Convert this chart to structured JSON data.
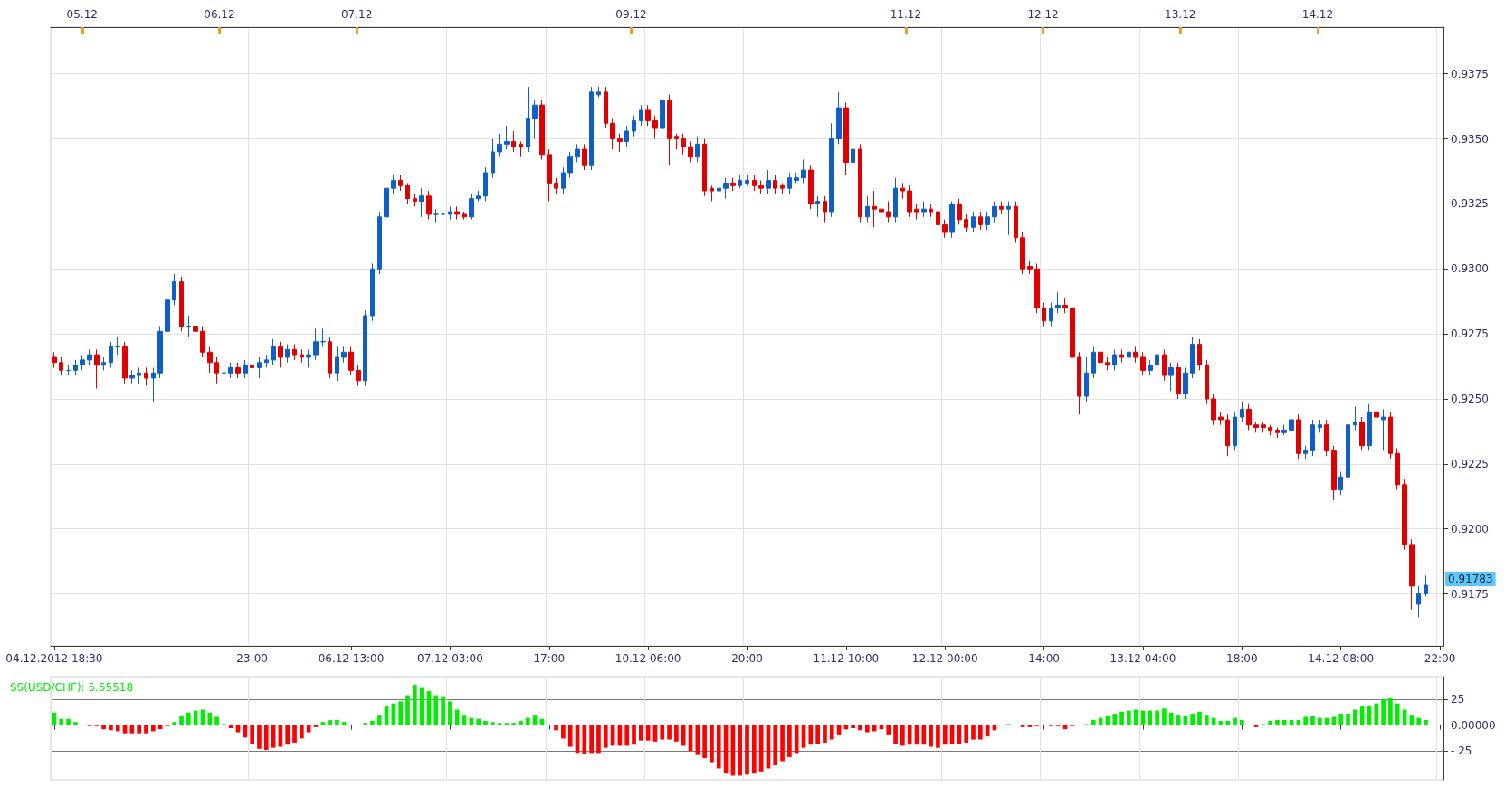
{
  "chart_data": [
    {
      "type": "candlestick",
      "categories": [
        "04.12.2012 18:30",
        null,
        null,
        null,
        null,
        null,
        null,
        null,
        null,
        null,
        null,
        null,
        null,
        null,
        null,
        null,
        null,
        null,
        null,
        null,
        null,
        null,
        null,
        null,
        null,
        null,
        null,
        null,
        "23:00",
        null,
        null,
        null,
        null,
        null,
        null,
        null,
        null,
        null,
        null,
        null,
        null,
        null,
        "06.12 13:00",
        null,
        null,
        null,
        null,
        null,
        null,
        null,
        null,
        null,
        null,
        null,
        null,
        null,
        "07.12 03:00",
        null,
        null,
        null,
        null,
        null,
        null,
        null,
        null,
        null,
        null,
        null,
        null,
        null,
        "17:00",
        null,
        null,
        null,
        null,
        null,
        null,
        null,
        null,
        null,
        null,
        null,
        null,
        null,
        "10.12 06:00",
        null,
        null,
        null,
        null,
        null,
        null,
        null,
        null,
        null,
        null,
        null,
        null,
        null,
        "20:00",
        null,
        null,
        null,
        null,
        null,
        null,
        null,
        null,
        null,
        null,
        null,
        null,
        null,
        "11.12 10:00",
        null,
        null,
        null,
        null,
        null,
        null,
        null,
        null,
        null,
        null,
        null,
        null,
        null,
        "12.12 00:00",
        null,
        null,
        null,
        null,
        null,
        null,
        null,
        null,
        null,
        null,
        null,
        null,
        null,
        "14:00",
        null,
        null,
        null,
        null,
        null,
        null,
        null,
        null,
        null,
        null,
        null,
        null,
        null,
        "13.12 04:00",
        null,
        null,
        null,
        null,
        null,
        null,
        null,
        null,
        null,
        null,
        null,
        null,
        null,
        "18:00",
        null,
        null,
        null,
        null,
        null,
        null,
        null,
        null,
        null,
        null,
        null,
        null,
        null,
        "14.12 08:00",
        null,
        null,
        null,
        null,
        null,
        null,
        null,
        null,
        null,
        null,
        null,
        null,
        null,
        "22:00"
      ],
      "ohlc": [
        [
          0.9266,
          0.9268,
          0.9262,
          0.9264
        ],
        [
          0.9264,
          0.9266,
          0.9259,
          0.9261
        ],
        [
          0.9261,
          0.9263,
          0.9259,
          0.9261
        ],
        [
          0.9261,
          0.9265,
          0.9259,
          0.9263
        ],
        [
          0.9263,
          0.9267,
          0.9261,
          0.9265
        ],
        [
          0.9265,
          0.9269,
          0.9263,
          0.9267
        ],
        [
          0.9267,
          0.9269,
          0.9254,
          0.9263
        ],
        [
          0.9263,
          0.9266,
          0.9261,
          0.9264
        ],
        [
          0.9264,
          0.9272,
          0.9262,
          0.927
        ],
        [
          0.927,
          0.9274,
          0.9267,
          0.927
        ],
        [
          0.927,
          0.9272,
          0.9256,
          0.9258
        ],
        [
          0.9258,
          0.9261,
          0.9256,
          0.9259
        ],
        [
          0.9259,
          0.9262,
          0.9256,
          0.926
        ],
        [
          0.926,
          0.9262,
          0.9255,
          0.9258
        ],
        [
          0.9258,
          0.9262,
          0.9249,
          0.926
        ],
        [
          0.926,
          0.9278,
          0.9258,
          0.9276
        ],
        [
          0.9276,
          0.929,
          0.9274,
          0.9288
        ],
        [
          0.9288,
          0.9298,
          0.9286,
          0.9295
        ],
        [
          0.9295,
          0.9297,
          0.9276,
          0.9278
        ],
        [
          0.9278,
          0.9282,
          0.9274,
          0.9278
        ],
        [
          0.9278,
          0.928,
          0.9274,
          0.9276
        ],
        [
          0.9276,
          0.9278,
          0.9266,
          0.9268
        ],
        [
          0.9268,
          0.927,
          0.926,
          0.9264
        ],
        [
          0.9264,
          0.9266,
          0.9256,
          0.926
        ],
        [
          0.926,
          0.9262,
          0.9258,
          0.926
        ],
        [
          0.926,
          0.9264,
          0.9258,
          0.9262
        ],
        [
          0.9262,
          0.9264,
          0.9258,
          0.926
        ],
        [
          0.926,
          0.9265,
          0.9258,
          0.9263
        ],
        [
          0.9263,
          0.9265,
          0.9259,
          0.9262
        ],
        [
          0.9262,
          0.9266,
          0.9258,
          0.9264
        ],
        [
          0.9264,
          0.9267,
          0.9262,
          0.9265
        ],
        [
          0.9265,
          0.9273,
          0.9263,
          0.927
        ],
        [
          0.927,
          0.9272,
          0.9262,
          0.9266
        ],
        [
          0.9266,
          0.9271,
          0.9264,
          0.9269
        ],
        [
          0.9269,
          0.9271,
          0.9265,
          0.9267
        ],
        [
          0.9267,
          0.9269,
          0.9264,
          0.9266
        ],
        [
          0.9266,
          0.9269,
          0.9262,
          0.9267
        ],
        [
          0.9267,
          0.9277,
          0.9265,
          0.9272
        ],
        [
          0.9272,
          0.9277,
          0.927,
          0.9272
        ],
        [
          0.9272,
          0.9274,
          0.9258,
          0.926
        ],
        [
          0.926,
          0.927,
          0.9257,
          0.9266
        ],
        [
          0.9266,
          0.927,
          0.9264,
          0.9268
        ],
        [
          0.9268,
          0.927,
          0.9259,
          0.9261
        ],
        [
          0.9261,
          0.9263,
          0.9255,
          0.9257
        ],
        [
          0.9257,
          0.9284,
          0.9255,
          0.9282
        ],
        [
          0.9282,
          0.9302,
          0.928,
          0.93
        ],
        [
          0.93,
          0.9322,
          0.9298,
          0.932
        ],
        [
          0.932,
          0.9333,
          0.9318,
          0.9331
        ],
        [
          0.9331,
          0.9336,
          0.9329,
          0.9334
        ],
        [
          0.9334,
          0.9336,
          0.933,
          0.9332
        ],
        [
          0.9332,
          0.9333,
          0.9325,
          0.9327
        ],
        [
          0.9327,
          0.9329,
          0.9324,
          0.9326
        ],
        [
          0.9326,
          0.9331,
          0.932,
          0.9328
        ],
        [
          0.9328,
          0.933,
          0.9319,
          0.9321
        ],
        [
          0.9321,
          0.9323,
          0.9318,
          0.9321
        ],
        [
          0.9321,
          0.9323,
          0.9319,
          0.9321
        ],
        [
          0.9321,
          0.9324,
          0.9319,
          0.9322
        ],
        [
          0.9322,
          0.9324,
          0.9319,
          0.9321
        ],
        [
          0.9321,
          0.9322,
          0.9319,
          0.932
        ],
        [
          0.932,
          0.9329,
          0.9319,
          0.9327
        ],
        [
          0.9327,
          0.933,
          0.9326,
          0.9328
        ],
        [
          0.9328,
          0.9339,
          0.9326,
          0.9337
        ],
        [
          0.9337,
          0.935,
          0.9335,
          0.9345
        ],
        [
          0.9345,
          0.9352,
          0.9343,
          0.9348
        ],
        [
          0.9348,
          0.9355,
          0.9346,
          0.9349
        ],
        [
          0.9349,
          0.9353,
          0.9345,
          0.9347
        ],
        [
          0.9348,
          0.9349,
          0.9343,
          0.9347
        ],
        [
          0.9347,
          0.937,
          0.9345,
          0.9358
        ],
        [
          0.9358,
          0.9365,
          0.935,
          0.9363
        ],
        [
          0.9363,
          0.9365,
          0.9342,
          0.9344
        ],
        [
          0.9344,
          0.9346,
          0.9326,
          0.9333
        ],
        [
          0.9333,
          0.9335,
          0.9329,
          0.9331
        ],
        [
          0.9331,
          0.9339,
          0.9329,
          0.9337
        ],
        [
          0.9337,
          0.9345,
          0.9335,
          0.9343
        ],
        [
          0.9343,
          0.9348,
          0.9341,
          0.9346
        ],
        [
          0.9346,
          0.9348,
          0.9338,
          0.934
        ],
        [
          0.934,
          0.937,
          0.9338,
          0.9368
        ],
        [
          0.9367,
          0.937,
          0.9366,
          0.9368
        ],
        [
          0.9368,
          0.937,
          0.9354,
          0.9356
        ],
        [
          0.9356,
          0.9358,
          0.9346,
          0.935
        ],
        [
          0.935,
          0.9352,
          0.9345,
          0.9349
        ],
        [
          0.9349,
          0.9355,
          0.9347,
          0.9353
        ],
        [
          0.9353,
          0.9359,
          0.9351,
          0.9357
        ],
        [
          0.9357,
          0.9363,
          0.9355,
          0.9361
        ],
        [
          0.9361,
          0.9363,
          0.9355,
          0.9357
        ],
        [
          0.9357,
          0.9359,
          0.935,
          0.9354
        ],
        [
          0.9354,
          0.9368,
          0.9352,
          0.9365
        ],
        [
          0.9365,
          0.9367,
          0.934,
          0.935
        ],
        [
          0.9351,
          0.9352,
          0.9346,
          0.935
        ],
        [
          0.935,
          0.9352,
          0.9344,
          0.9347
        ],
        [
          0.9347,
          0.9349,
          0.9341,
          0.9343
        ],
        [
          0.9343,
          0.9351,
          0.9341,
          0.9348
        ],
        [
          0.9348,
          0.935,
          0.9328,
          0.933
        ],
        [
          0.9331,
          0.9332,
          0.9326,
          0.933
        ],
        [
          0.933,
          0.9335,
          0.9328,
          0.9331
        ],
        [
          0.9331,
          0.9335,
          0.9327,
          0.9333
        ],
        [
          0.9333,
          0.9335,
          0.933,
          0.9332
        ],
        [
          0.9332,
          0.9336,
          0.9331,
          0.9334
        ],
        [
          0.9333,
          0.9336,
          0.9332,
          0.9334
        ],
        [
          0.9334,
          0.9336,
          0.933,
          0.9332
        ],
        [
          0.9332,
          0.9334,
          0.9329,
          0.9331
        ],
        [
          0.9331,
          0.9338,
          0.9329,
          0.9334
        ],
        [
          0.9334,
          0.9336,
          0.9329,
          0.9331
        ],
        [
          0.9332,
          0.9333,
          0.9329,
          0.9331
        ],
        [
          0.9331,
          0.9337,
          0.9329,
          0.9335
        ],
        [
          0.9334,
          0.9337,
          0.9333,
          0.9335
        ],
        [
          0.9335,
          0.9342,
          0.9333,
          0.9338
        ],
        [
          0.9338,
          0.934,
          0.9323,
          0.9325
        ],
        [
          0.9325,
          0.9328,
          0.932,
          0.9326
        ],
        [
          0.9326,
          0.9328,
          0.9318,
          0.9322
        ],
        [
          0.9322,
          0.9356,
          0.932,
          0.935
        ],
        [
          0.935,
          0.9368,
          0.9348,
          0.9362
        ],
        [
          0.9362,
          0.9364,
          0.9336,
          0.9341
        ],
        [
          0.9341,
          0.935,
          0.9338,
          0.9346
        ],
        [
          0.9346,
          0.9348,
          0.9318,
          0.932
        ],
        [
          0.932,
          0.9328,
          0.9318,
          0.9324
        ],
        [
          0.9324,
          0.933,
          0.9316,
          0.9323
        ],
        [
          0.9323,
          0.9328,
          0.932,
          0.9322
        ],
        [
          0.9322,
          0.9326,
          0.9318,
          0.932
        ],
        [
          0.932,
          0.9335,
          0.9318,
          0.9331
        ],
        [
          0.9331,
          0.9333,
          0.9327,
          0.933
        ],
        [
          0.933,
          0.9332,
          0.932,
          0.9322
        ],
        [
          0.9323,
          0.9325,
          0.9319,
          0.9322
        ],
        [
          0.9322,
          0.9326,
          0.932,
          0.9323
        ],
        [
          0.9323,
          0.9325,
          0.932,
          0.9322
        ],
        [
          0.9322,
          0.9324,
          0.9315,
          0.9317
        ],
        [
          0.9317,
          0.9319,
          0.9312,
          0.9314
        ],
        [
          0.9314,
          0.9326,
          0.9312,
          0.9325
        ],
        [
          0.9325,
          0.9327,
          0.9317,
          0.9319
        ],
        [
          0.9319,
          0.9321,
          0.9314,
          0.9316
        ],
        [
          0.9316,
          0.9322,
          0.9314,
          0.932
        ],
        [
          0.932,
          0.9322,
          0.9315,
          0.9317
        ],
        [
          0.9317,
          0.9322,
          0.9315,
          0.932
        ],
        [
          0.932,
          0.9326,
          0.9318,
          0.9324
        ],
        [
          0.9324,
          0.9326,
          0.9321,
          0.9323
        ],
        [
          0.9323,
          0.9326,
          0.9313,
          0.9324
        ],
        [
          0.9324,
          0.9326,
          0.931,
          0.9312
        ],
        [
          0.9312,
          0.9314,
          0.9298,
          0.93
        ],
        [
          0.9301,
          0.9303,
          0.9298,
          0.93
        ],
        [
          0.93,
          0.9302,
          0.9283,
          0.9285
        ],
        [
          0.9285,
          0.9287,
          0.9278,
          0.928
        ],
        [
          0.928,
          0.9287,
          0.9278,
          0.9285
        ],
        [
          0.9285,
          0.9291,
          0.9283,
          0.9286
        ],
        [
          0.9286,
          0.9289,
          0.9283,
          0.9285
        ],
        [
          0.9285,
          0.9287,
          0.9264,
          0.9266
        ],
        [
          0.9266,
          0.9268,
          0.9244,
          0.9251
        ],
        [
          0.9251,
          0.9266,
          0.9249,
          0.926
        ],
        [
          0.926,
          0.927,
          0.9258,
          0.9268
        ],
        [
          0.9268,
          0.927,
          0.9262,
          0.9264
        ],
        [
          0.9264,
          0.9266,
          0.9261,
          0.9263
        ],
        [
          0.9263,
          0.9269,
          0.9261,
          0.9267
        ],
        [
          0.9267,
          0.9269,
          0.9264,
          0.9266
        ],
        [
          0.9266,
          0.927,
          0.9264,
          0.9268
        ],
        [
          0.9268,
          0.927,
          0.9264,
          0.9266
        ],
        [
          0.9266,
          0.9268,
          0.9259,
          0.9261
        ],
        [
          0.9261,
          0.9265,
          0.9259,
          0.9263
        ],
        [
          0.9263,
          0.9269,
          0.9261,
          0.9267
        ],
        [
          0.9267,
          0.9269,
          0.9257,
          0.9259
        ],
        [
          0.9259,
          0.9264,
          0.9253,
          0.9262
        ],
        [
          0.9262,
          0.9264,
          0.925,
          0.9252
        ],
        [
          0.9252,
          0.9262,
          0.925,
          0.926
        ],
        [
          0.926,
          0.9274,
          0.9258,
          0.9271
        ],
        [
          0.9271,
          0.9273,
          0.9261,
          0.9263
        ],
        [
          0.9263,
          0.9265,
          0.9248,
          0.925
        ],
        [
          0.925,
          0.9252,
          0.924,
          0.9242
        ],
        [
          0.9243,
          0.9245,
          0.924,
          0.9242
        ],
        [
          0.9242,
          0.9244,
          0.9228,
          0.9232
        ],
        [
          0.9232,
          0.9245,
          0.923,
          0.9243
        ],
        [
          0.9243,
          0.9249,
          0.9241,
          0.9246
        ],
        [
          0.9246,
          0.9248,
          0.9238,
          0.924
        ],
        [
          0.924,
          0.9241,
          0.9237,
          0.9239
        ],
        [
          0.924,
          0.9241,
          0.9237,
          0.9239
        ],
        [
          0.9239,
          0.924,
          0.9236,
          0.9238
        ],
        [
          0.9238,
          0.9239,
          0.9235,
          0.9237
        ],
        [
          0.9237,
          0.924,
          0.9236,
          0.9238
        ],
        [
          0.9238,
          0.9244,
          0.9236,
          0.9242
        ],
        [
          0.9242,
          0.9244,
          0.9227,
          0.9229
        ],
        [
          0.9229,
          0.9232,
          0.9227,
          0.923
        ],
        [
          0.923,
          0.9242,
          0.9228,
          0.924
        ],
        [
          0.9239,
          0.9242,
          0.9237,
          0.924
        ],
        [
          0.924,
          0.9242,
          0.9228,
          0.923
        ],
        [
          0.923,
          0.9232,
          0.9211,
          0.9215
        ],
        [
          0.9215,
          0.9222,
          0.9213,
          0.922
        ],
        [
          0.922,
          0.9242,
          0.9218,
          0.924
        ],
        [
          0.924,
          0.9247,
          0.9238,
          0.9241
        ],
        [
          0.9241,
          0.9243,
          0.923,
          0.9232
        ],
        [
          0.9232,
          0.9248,
          0.923,
          0.9245
        ],
        [
          0.9245,
          0.9247,
          0.9228,
          0.9243
        ],
        [
          0.9242,
          0.9246,
          0.923,
          0.9243
        ],
        [
          0.9243,
          0.9245,
          0.9227,
          0.9229
        ],
        [
          0.9229,
          0.9231,
          0.9215,
          0.9217
        ],
        [
          0.9217,
          0.9219,
          0.9192,
          0.9194
        ],
        [
          0.9194,
          0.9196,
          0.9169,
          0.9178
        ],
        [
          0.9171,
          0.9178,
          0.9166,
          0.9175
        ],
        [
          0.9175,
          0.9182,
          0.9174,
          0.91783
        ],
        null,
        null
      ],
      "colors": [
        "#e00000",
        "#e00000",
        "#0f5fc8",
        "#0f5fc8",
        "#0f5fc8",
        "#0f5fc8",
        "#e00000",
        "#0f5fc8",
        "#0f5fc8",
        "#0f5fc8",
        "#e00000",
        "#0f5fc8",
        "#0f5fc8",
        "#e00000",
        "#0f5fc8",
        "#0f5fc8",
        "#0f5fc8",
        "#0f5fc8",
        "#e00000",
        "#0f5fc8",
        "#e00000",
        "#e00000",
        "#e00000",
        "#e00000",
        "#0f5fc8",
        "#0f5fc8",
        "#e00000",
        "#0f5fc8",
        "#e00000",
        "#0f5fc8",
        "#0f5fc8",
        "#0f5fc8",
        "#e00000",
        "#0f5fc8",
        "#e00000",
        "#e00000",
        "#0f5fc8",
        "#0f5fc8",
        "#0f5fc8",
        "#e00000",
        "#0f5fc8",
        "#0f5fc8",
        "#e00000",
        "#e00000",
        "#0f5fc8",
        "#0f5fc8",
        "#0f5fc8",
        "#0f5fc8",
        "#0f5fc8",
        "#e00000",
        "#e00000",
        "#e00000",
        "#0f5fc8",
        "#e00000",
        "#0f5fc8",
        "#0f5fc8",
        "#0f5fc8",
        "#e00000",
        "#e00000",
        "#0f5fc8",
        "#0f5fc8",
        "#0f5fc8",
        "#0f5fc8",
        "#0f5fc8",
        "#0f5fc8",
        "#e00000",
        "#e00000",
        "#0f5fc8",
        "#0f5fc8",
        "#e00000",
        "#e00000",
        "#e00000",
        "#0f5fc8",
        "#0f5fc8",
        "#0f5fc8",
        "#e00000",
        "#0f5fc8",
        "#0f5fc8",
        "#e00000",
        "#e00000",
        "#e00000",
        "#0f5fc8",
        "#0f5fc8",
        "#0f5fc8",
        "#e00000",
        "#e00000",
        "#0f5fc8",
        "#e00000",
        "#e00000",
        "#e00000",
        "#e00000",
        "#0f5fc8",
        "#e00000",
        "#e00000",
        "#0f5fc8",
        "#0f5fc8",
        "#e00000",
        "#0f5fc8",
        "#0f5fc8",
        "#e00000",
        "#e00000",
        "#0f5fc8",
        "#e00000",
        "#e00000",
        "#0f5fc8",
        "#0f5fc8",
        "#0f5fc8",
        "#e00000",
        "#0f5fc8",
        "#e00000",
        "#0f5fc8",
        "#0f5fc8",
        "#e00000",
        "#0f5fc8",
        "#e00000",
        "#0f5fc8",
        "#e00000",
        "#e00000",
        "#e00000",
        "#0f5fc8",
        "#e00000",
        "#e00000",
        "#e00000",
        "#0f5fc8",
        "#e00000",
        "#e00000",
        "#e00000",
        "#0f5fc8",
        "#e00000",
        "#e00000",
        "#0f5fc8",
        "#e00000",
        "#0f5fc8",
        "#0f5fc8",
        "#e00000",
        "#0f5fc8",
        "#e00000",
        "#e00000",
        "#e00000",
        "#e00000",
        "#e00000",
        "#0f5fc8",
        "#0f5fc8",
        "#e00000",
        "#e00000",
        "#e00000",
        "#0f5fc8",
        "#0f5fc8",
        "#e00000",
        "#e00000",
        "#0f5fc8",
        "#e00000",
        "#0f5fc8",
        "#e00000",
        "#e00000",
        "#0f5fc8",
        "#0f5fc8",
        "#e00000",
        "#0f5fc8",
        "#e00000",
        "#0f5fc8",
        "#0f5fc8",
        "#e00000",
        "#e00000",
        "#e00000",
        "#e00000",
        "#e00000",
        "#0f5fc8",
        "#0f5fc8",
        "#e00000",
        "#e00000",
        "#e00000",
        "#e00000",
        "#e00000",
        "#0f5fc8",
        "#0f5fc8",
        "#e00000",
        "#0f5fc8",
        "#0f5fc8",
        "#0f5fc8",
        "#e00000",
        "#e00000",
        "#0f5fc8",
        "#0f5fc8",
        "#0f5fc8",
        "#e00000",
        "#0f5fc8",
        "#e00000",
        "#0f5fc8",
        "#e00000",
        "#e00000",
        "#e00000",
        "#e00000",
        "#0f5fc8",
        "#0f5fc8",
        null,
        null
      ],
      "ylim": [
        0.9155,
        0.9393
      ],
      "yticks": [
        0.9175,
        {
          "value": 0.92,
          "label": "0.9200"
        },
        0.9225,
        {
          "value": 0.925,
          "label": "0.9250"
        },
        0.9275,
        {
          "value": 0.93,
          "label": "0.9300"
        },
        0.9325,
        {
          "value": 0.935,
          "label": "0.9350"
        },
        0.9375
      ],
      "x2lim": [
        "--12-04T18:30",
        "--12-14T22:00"
      ],
      "x2ticks": [
        {
          "value": "--12-05",
          "label": "05.12"
        },
        {
          "value": "--12-06",
          "label": "06.12"
        },
        {
          "value": "--12-07",
          "label": "07.12"
        },
        {
          "value": "--12-09",
          "label": "09.12"
        },
        {
          "value": "--12-11",
          "label": "11.12"
        },
        {
          "value": "--12-12",
          "label": "12.12"
        },
        {
          "value": "--12-13",
          "label": "13.12"
        },
        {
          "value": "--12-14",
          "label": "14.12"
        }
      ],
      "annotations": [
        "0.91783"
      ],
      "grid": true
    },
    {
      "type": "bar",
      "title": "SS(USD/CHF): 5.55518",
      "categories": [
        null,
        null,
        null,
        null,
        null,
        null,
        null,
        null,
        null,
        null,
        null,
        null,
        null,
        null,
        null,
        null,
        null,
        null,
        null,
        null,
        null,
        null,
        null,
        null,
        null,
        null,
        null,
        null,
        null,
        null,
        null,
        null,
        null,
        null,
        null,
        null,
        null,
        null,
        null,
        null,
        null,
        null,
        null,
        null,
        null,
        null,
        null,
        null,
        null,
        null,
        null,
        null,
        null,
        null,
        null,
        null,
        null,
        null,
        null,
        null,
        null,
        null,
        null,
        null,
        null,
        null,
        null,
        null,
        null,
        null,
        null,
        null,
        null,
        null,
        null,
        null,
        null,
        null,
        null,
        null,
        null,
        null,
        null,
        null,
        null,
        null,
        null,
        null,
        null,
        null,
        null,
        null,
        null,
        null,
        null,
        null,
        null,
        null,
        null,
        null,
        null,
        null,
        null,
        null,
        null,
        null,
        null,
        null,
        null,
        null,
        null,
        null,
        null,
        null,
        null,
        null,
        null,
        null,
        null,
        null,
        null,
        null,
        null,
        null,
        null,
        null,
        null,
        null,
        null,
        null,
        null,
        null,
        null,
        null,
        null,
        null,
        null,
        null,
        null,
        null,
        null,
        null,
        null,
        null,
        null,
        null,
        null,
        null,
        null,
        null,
        null,
        null,
        null,
        null,
        null,
        null,
        null,
        null,
        null,
        null,
        null,
        null,
        null,
        null,
        null,
        null,
        null,
        null,
        null,
        null,
        null,
        null,
        null,
        null,
        null,
        null,
        null,
        null,
        null,
        null,
        null,
        null,
        null,
        null,
        null,
        null,
        null,
        null,
        null,
        null,
        null,
        null,
        null,
        null,
        null,
        null,
        null
      ],
      "values": [
        12,
        6,
        6,
        3,
        0,
        -1,
        -1,
        -4,
        -5,
        -6,
        -8,
        -8,
        -8,
        -8,
        -6,
        -4,
        -1,
        3,
        9,
        12,
        14,
        15,
        12,
        8,
        1,
        -3,
        -7,
        -12,
        -18,
        -23,
        -24,
        -22,
        -21,
        -19,
        -17,
        -13,
        -7,
        -2,
        3,
        5,
        5,
        3,
        0,
        0,
        2,
        4,
        10,
        18,
        21,
        23,
        29,
        39,
        36,
        33,
        29,
        28,
        23,
        15,
        10,
        7,
        6,
        4,
        3,
        2,
        2,
        2,
        4,
        7,
        10,
        6,
        0,
        -5,
        -13,
        -21,
        -27,
        -28,
        -27,
        -27,
        -22,
        -20,
        -20,
        -20,
        -19,
        -15,
        -15,
        -16,
        -14,
        -14,
        -16,
        -20,
        -25,
        -29,
        -32,
        -36,
        -42,
        -47,
        -49,
        -49,
        -48,
        -47,
        -45,
        -42,
        -39,
        -35,
        -31,
        -27,
        -22,
        -19,
        -18,
        -17,
        -14,
        -9,
        -4,
        -3,
        -5,
        -7,
        -6,
        -4,
        -9,
        -18,
        -20,
        -19,
        -19,
        -19,
        -21,
        -22,
        -19,
        -18,
        -18,
        -17,
        -14,
        -14,
        -11,
        -5,
        0,
        1,
        0,
        -2,
        -2,
        -1,
        0,
        -1,
        -1,
        -4,
        -1,
        0,
        1,
        5,
        7,
        9,
        11,
        13,
        14,
        15,
        14,
        14,
        14,
        16,
        12,
        10,
        9,
        11,
        13,
        10,
        7,
        4,
        4,
        7,
        5,
        0,
        -2,
        1,
        4,
        5,
        5,
        5,
        5,
        8,
        9,
        7,
        7,
        8,
        11,
        11,
        15,
        18,
        19,
        21,
        25,
        26,
        21,
        15,
        10,
        7,
        5,
        null,
        null
      ],
      "colors": [
        "#00ee00",
        "#00ee00",
        "#00ee00",
        "#00ee00",
        "#00ee00",
        "#ff0000",
        "#ff0000",
        "#ff0000",
        "#ff0000",
        "#ff0000",
        "#ff0000",
        "#ff0000",
        "#ff0000",
        "#ff0000",
        "#ff0000",
        "#ff0000",
        "#ff0000",
        "#00ee00",
        "#00ee00",
        "#00ee00",
        "#00ee00",
        "#00ee00",
        "#00ee00",
        "#00ee00",
        "#00ee00",
        "#ff0000",
        "#ff0000",
        "#ff0000",
        "#ff0000",
        "#ff0000",
        "#ff0000",
        "#ff0000",
        "#ff0000",
        "#ff0000",
        "#ff0000",
        "#ff0000",
        "#ff0000",
        "#ff0000",
        "#00ee00",
        "#00ee00",
        "#00ee00",
        "#00ee00",
        "#00ee00",
        "#00ee00",
        "#00ee00",
        "#00ee00",
        "#00ee00",
        "#00ee00",
        "#00ee00",
        "#00ee00",
        "#00ee00",
        "#00ee00",
        "#00ee00",
        "#00ee00",
        "#00ee00",
        "#00ee00",
        "#00ee00",
        "#00ee00",
        "#00ee00",
        "#00ee00",
        "#00ee00",
        "#00ee00",
        "#00ee00",
        "#00ee00",
        "#00ee00",
        "#00ee00",
        "#00ee00",
        "#00ee00",
        "#00ee00",
        "#00ee00",
        "#00ee00",
        "#ff0000",
        "#ff0000",
        "#ff0000",
        "#ff0000",
        "#ff0000",
        "#ff0000",
        "#ff0000",
        "#ff0000",
        "#ff0000",
        "#ff0000",
        "#ff0000",
        "#ff0000",
        "#ff0000",
        "#ff0000",
        "#ff0000",
        "#ff0000",
        "#ff0000",
        "#ff0000",
        "#ff0000",
        "#ff0000",
        "#ff0000",
        "#ff0000",
        "#ff0000",
        "#ff0000",
        "#ff0000",
        "#ff0000",
        "#ff0000",
        "#ff0000",
        "#ff0000",
        "#ff0000",
        "#ff0000",
        "#ff0000",
        "#ff0000",
        "#ff0000",
        "#ff0000",
        "#ff0000",
        "#ff0000",
        "#ff0000",
        "#ff0000",
        "#ff0000",
        "#ff0000",
        "#ff0000",
        "#ff0000",
        "#ff0000",
        "#ff0000",
        "#ff0000",
        "#ff0000",
        "#ff0000",
        "#ff0000",
        "#ff0000",
        "#ff0000",
        "#ff0000",
        "#ff0000",
        "#ff0000",
        "#ff0000",
        "#ff0000",
        "#ff0000",
        "#ff0000",
        "#ff0000",
        "#ff0000",
        "#ff0000",
        "#ff0000",
        "#ff0000",
        "#00ee00",
        "#00ee00",
        "#00ee00",
        "#ff0000",
        "#ff0000",
        "#ff0000",
        "#00ee00",
        "#ff0000",
        "#ff0000",
        "#ff0000",
        "#ff0000",
        "#00ee00",
        "#00ee00",
        "#00ee00",
        "#00ee00",
        "#00ee00",
        "#00ee00",
        "#00ee00",
        "#00ee00",
        "#00ee00",
        "#00ee00",
        "#00ee00",
        "#00ee00",
        "#00ee00",
        "#00ee00",
        "#00ee00",
        "#00ee00",
        "#00ee00",
        "#00ee00",
        "#00ee00",
        "#00ee00",
        "#00ee00",
        "#00ee00",
        "#00ee00",
        "#00ee00",
        "#00ee00",
        "#ff0000",
        "#00ee00",
        "#00ee00",
        "#00ee00",
        "#00ee00",
        "#00ee00",
        "#00ee00",
        "#00ee00",
        "#00ee00",
        "#00ee00",
        "#00ee00",
        "#00ee00",
        "#00ee00",
        "#00ee00",
        "#00ee00",
        "#00ee00",
        "#00ee00",
        "#00ee00",
        "#00ee00",
        "#00ee00",
        "#00ee00",
        "#00ee00",
        "#00ee00",
        "#00ee00",
        "#00ee00",
        null,
        null
      ],
      "ylim": [
        -53,
        47
      ],
      "yticks": [
        {
          "value": -25,
          "label": "- 25"
        },
        {
          "value": 0,
          "label": "0.00000"
        },
        25
      ],
      "grid": true
    }
  ]
}
